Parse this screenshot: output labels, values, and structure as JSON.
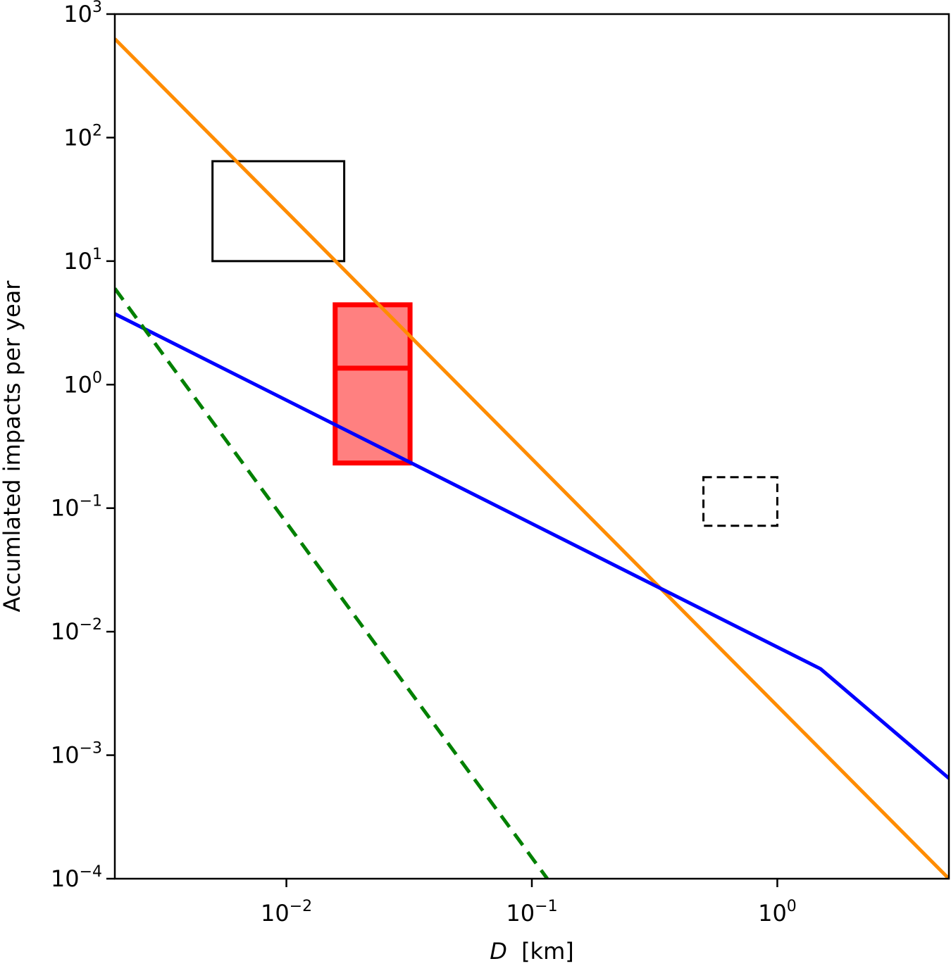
{
  "chart_data": {
    "type": "line",
    "title": "",
    "xlabel": "D [km]",
    "xlabel_italic_part": "D",
    "xlabel_unit": "[km]",
    "ylabel": "Accumlated impacts per year",
    "xscale": "log",
    "yscale": "log",
    "xlim": [
      0.002,
      5.0
    ],
    "ylim": [
      0.0001,
      1000
    ],
    "grid": false,
    "legend": null,
    "x_ticks": [
      {
        "value": 0.01,
        "base": "10",
        "exp": "−2"
      },
      {
        "value": 0.1,
        "base": "10",
        "exp": "−1"
      },
      {
        "value": 1,
        "base": "10",
        "exp": "0"
      }
    ],
    "y_ticks": [
      {
        "value": 1000,
        "base": "10",
        "exp": "3"
      },
      {
        "value": 100,
        "base": "10",
        "exp": "2"
      },
      {
        "value": 10,
        "base": "10",
        "exp": "1"
      },
      {
        "value": 1,
        "base": "10",
        "exp": "0"
      },
      {
        "value": 0.1,
        "base": "10",
        "exp": "−1"
      },
      {
        "value": 0.01,
        "base": "10",
        "exp": "−2"
      },
      {
        "value": 0.001,
        "base": "10",
        "exp": "−3"
      },
      {
        "value": 0.0001,
        "base": "10",
        "exp": "−4"
      }
    ],
    "series": [
      {
        "name": "orange-power-law",
        "color": "#ff8c00",
        "style": "solid",
        "x": [
          0.002,
          5.0
        ],
        "y": [
          630,
          0.0001
        ]
      },
      {
        "name": "blue-broken-power-law",
        "color": "#0000ff",
        "style": "solid",
        "x": [
          0.002,
          1.5,
          5.0
        ],
        "y": [
          3.74,
          0.005,
          0.00065
        ]
      },
      {
        "name": "green-dashed-power-law",
        "color": "#008000",
        "style": "dashed",
        "x": [
          0.002,
          0.1156
        ],
        "y": [
          6.0,
          0.0001
        ]
      }
    ],
    "boxes": [
      {
        "name": "black-solid-box",
        "x_range": [
          0.005,
          0.0172
        ],
        "y_range": [
          10,
          64.4
        ],
        "edge_color": "#000000",
        "fill": "none",
        "style": "solid"
      },
      {
        "name": "red-filled-box",
        "x_range": [
          0.0158,
          0.0319
        ],
        "y_range": [
          0.232,
          4.43
        ],
        "median_y": 1.36,
        "edge_color": "#ff0000",
        "fill": "#ff8080",
        "style": "solid"
      },
      {
        "name": "black-dashed-box",
        "x_range": [
          0.5,
          1.0
        ],
        "y_range": [
          0.072,
          0.178
        ],
        "edge_color": "#000000",
        "fill": "none",
        "style": "dashed"
      }
    ]
  }
}
